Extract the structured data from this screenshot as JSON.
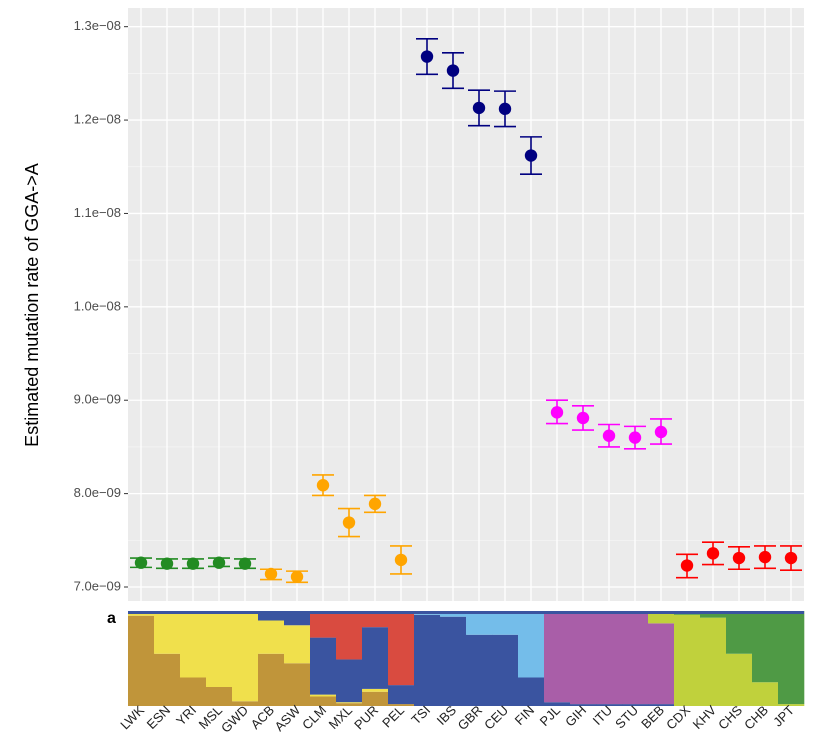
{
  "chart_data": {
    "type": "scatter",
    "panel_label": "a",
    "ylabel": "Estimated mutation rate of  GGA->A",
    "xlabel": "",
    "ylim": [
      6.85e-09,
      1.32e-08
    ],
    "yticks": [
      7e-09,
      8e-09,
      9e-09,
      1e-08,
      1.1e-08,
      1.2e-08,
      1.3e-08
    ],
    "ytick_labels": [
      "7.0e−09",
      "8.0e−09",
      "9.0e−09",
      "1.0e−08",
      "1.1e−08",
      "1.2e−08",
      "1.3e−08"
    ],
    "grid": true,
    "error_bars": true,
    "categories": [
      "LWK",
      "ESN",
      "YRI",
      "MSL",
      "GWD",
      "ACB",
      "ASW",
      "CLM",
      "MXL",
      "PUR",
      "PEL",
      "TSI",
      "IBS",
      "GBR",
      "CEU",
      "FIN",
      "PJL",
      "GIH",
      "ITU",
      "STU",
      "BEB",
      "CDX",
      "KHV",
      "CHS",
      "CHB",
      "JPT"
    ],
    "values": [
      7.26e-09,
      7.25e-09,
      7.25e-09,
      7.26e-09,
      7.25e-09,
      7.14e-09,
      7.11e-09,
      8.09e-09,
      7.69e-09,
      7.89e-09,
      7.29e-09,
      1.268e-08,
      1.253e-08,
      1.213e-08,
      1.212e-08,
      1.162e-08,
      8.87e-09,
      8.81e-09,
      8.62e-09,
      8.6e-09,
      8.66e-09,
      7.23e-09,
      7.36e-09,
      7.31e-09,
      7.32e-09,
      7.31e-09
    ],
    "lower": [
      7.21e-09,
      7.2e-09,
      7.2e-09,
      7.22e-09,
      7.2e-09,
      7.08e-09,
      7.05e-09,
      7.98e-09,
      7.54e-09,
      7.8e-09,
      7.14e-09,
      1.249e-08,
      1.234e-08,
      1.194e-08,
      1.193e-08,
      1.142e-08,
      8.75e-09,
      8.68e-09,
      8.5e-09,
      8.48e-09,
      8.53e-09,
      7.1e-09,
      7.24e-09,
      7.19e-09,
      7.2e-09,
      7.18e-09
    ],
    "upper": [
      7.31e-09,
      7.3e-09,
      7.3e-09,
      7.31e-09,
      7.3e-09,
      7.19e-09,
      7.17e-09,
      8.2e-09,
      7.84e-09,
      7.98e-09,
      7.44e-09,
      1.287e-08,
      1.272e-08,
      1.232e-08,
      1.231e-08,
      1.182e-08,
      9e-09,
      8.94e-09,
      8.74e-09,
      8.72e-09,
      8.8e-09,
      7.35e-09,
      7.48e-09,
      7.43e-09,
      7.44e-09,
      7.44e-09
    ],
    "point_colors": [
      "#228B22",
      "#228B22",
      "#228B22",
      "#228B22",
      "#228B22",
      "#FFA500",
      "#FFA500",
      "#FFA500",
      "#FFA500",
      "#FFA500",
      "#FFA500",
      "#000080",
      "#000080",
      "#000080",
      "#000080",
      "#000080",
      "#FF00FF",
      "#FF00FF",
      "#FF00FF",
      "#FF00FF",
      "#FF00FF",
      "#FF0000",
      "#FF0000",
      "#FF0000",
      "#FF0000",
      "#FF0000"
    ],
    "ancestry_bar": {
      "components": [
        "#c0953a",
        "#f0e04c",
        "#3a54a0",
        "#d94b40",
        "#74bdea",
        "#a95ea8",
        "#c0d13c",
        "#4f9a45"
      ],
      "fractions": [
        [
          0.95,
          0.05,
          0,
          0,
          0,
          0,
          0,
          0
        ],
        [
          0.55,
          0.45,
          0,
          0,
          0,
          0,
          0,
          0
        ],
        [
          0.3,
          0.7,
          0,
          0,
          0,
          0,
          0,
          0
        ],
        [
          0.2,
          0.8,
          0,
          0,
          0,
          0,
          0,
          0
        ],
        [
          0.05,
          0.95,
          0,
          0,
          0,
          0,
          0,
          0
        ],
        [
          0.55,
          0.35,
          0.1,
          0,
          0,
          0,
          0,
          0
        ],
        [
          0.45,
          0.4,
          0.15,
          0,
          0,
          0,
          0,
          0
        ],
        [
          0.1,
          0.02,
          0.6,
          0.28,
          0,
          0,
          0,
          0
        ],
        [
          0.03,
          0.01,
          0.45,
          0.51,
          0,
          0,
          0,
          0
        ],
        [
          0.15,
          0.03,
          0.65,
          0.17,
          0,
          0,
          0,
          0
        ],
        [
          0.02,
          0,
          0.2,
          0.78,
          0,
          0,
          0,
          0
        ],
        [
          0,
          0,
          0.96,
          0,
          0.04,
          0,
          0,
          0
        ],
        [
          0,
          0,
          0.94,
          0,
          0.06,
          0,
          0,
          0
        ],
        [
          0,
          0,
          0.75,
          0,
          0.25,
          0,
          0,
          0
        ],
        [
          0,
          0,
          0.75,
          0,
          0.25,
          0,
          0,
          0
        ],
        [
          0,
          0,
          0.3,
          0,
          0.7,
          0,
          0,
          0
        ],
        [
          0,
          0,
          0.04,
          0,
          0,
          0.96,
          0,
          0
        ],
        [
          0,
          0,
          0.02,
          0,
          0,
          0.98,
          0,
          0
        ],
        [
          0,
          0,
          0.02,
          0,
          0,
          0.98,
          0,
          0
        ],
        [
          0,
          0,
          0.02,
          0,
          0,
          0.95,
          0.03,
          0
        ],
        [
          0,
          0,
          0.02,
          0,
          0,
          0.85,
          0.13,
          0
        ],
        [
          0,
          0,
          0,
          0,
          0,
          0,
          0.96,
          0.04
        ],
        [
          0,
          0,
          0,
          0,
          0,
          0,
          0.93,
          0.07
        ],
        [
          0,
          0,
          0,
          0,
          0,
          0,
          0.55,
          0.45
        ],
        [
          0,
          0,
          0,
          0,
          0,
          0,
          0.25,
          0.75
        ],
        [
          0,
          0,
          0,
          0,
          0,
          0,
          0.02,
          0.98
        ]
      ]
    }
  }
}
